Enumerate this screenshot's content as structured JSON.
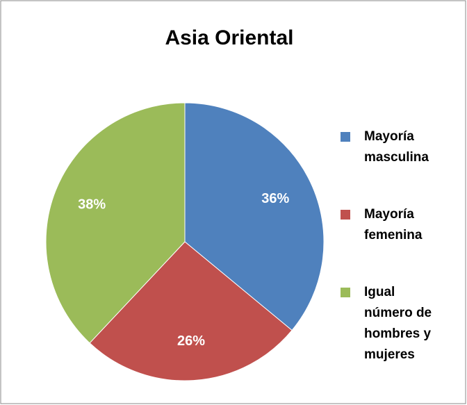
{
  "chart_data": {
    "type": "pie",
    "title": "Asia Oriental",
    "categories": [
      "Mayoría masculina",
      "Mayoría femenina",
      "Igual número de hombres y mujeres"
    ],
    "values": [
      36,
      26,
      38
    ],
    "value_labels": [
      "36%",
      "26%",
      "38%"
    ],
    "colors": [
      "#4f81bd",
      "#c0504d",
      "#9bbb59"
    ],
    "legend": "right"
  }
}
